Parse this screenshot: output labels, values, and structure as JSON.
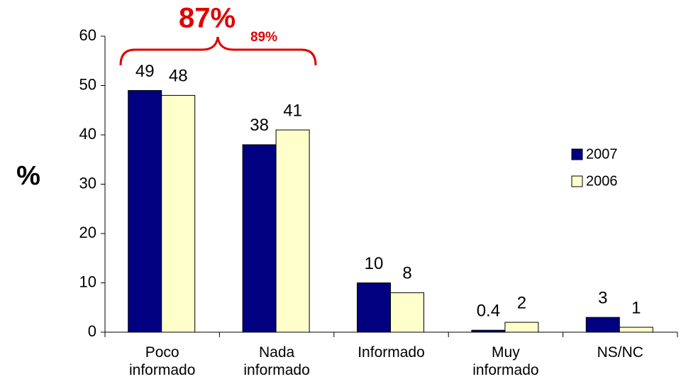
{
  "chart_data": {
    "type": "bar",
    "y_label": "%",
    "annotations": [
      "87%",
      "89%"
    ],
    "categories": [
      "Poco\ninformado",
      "Nada\ninformado",
      "Informado",
      "Muy\ninformado",
      "NS/NC"
    ],
    "series": [
      {
        "name": "2007",
        "color": "#000080",
        "values": [
          49,
          38,
          10,
          0.4,
          3
        ]
      },
      {
        "name": "2006",
        "color": "#ffffcc",
        "values": [
          48,
          41,
          8,
          2,
          1
        ]
      }
    ],
    "ylim": [
      0,
      60
    ],
    "yticks": [
      0,
      10,
      20,
      30,
      40,
      50,
      60
    ],
    "grid": false,
    "legend": "right"
  }
}
